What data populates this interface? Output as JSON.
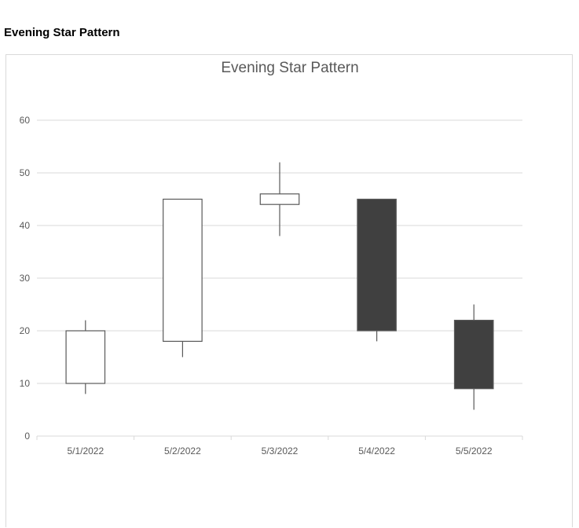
{
  "sheet": {
    "title": "Evening Star Pattern"
  },
  "chart_data": {
    "type": "candlestick",
    "title": "Evening Star Pattern",
    "xlabel": "",
    "ylabel": "",
    "categories": [
      "5/1/2022",
      "5/2/2022",
      "5/3/2022",
      "5/4/2022",
      "5/5/2022"
    ],
    "series": [
      {
        "open": [
          10,
          18,
          44,
          45,
          22
        ],
        "high": [
          22,
          45,
          52,
          45,
          25
        ],
        "low": [
          8,
          15,
          38,
          18,
          5
        ],
        "close": [
          20,
          45,
          46,
          20,
          9
        ]
      }
    ],
    "ylim": [
      0,
      60
    ],
    "yticks": [
      0,
      10,
      20,
      30,
      40,
      50,
      60
    ],
    "grid": true,
    "legend": "none",
    "colors": {
      "up_fill": "#ffffff",
      "down_fill": "#404040",
      "outline": "#595959",
      "grid": "#d9d9d9",
      "text": "#595959"
    }
  }
}
